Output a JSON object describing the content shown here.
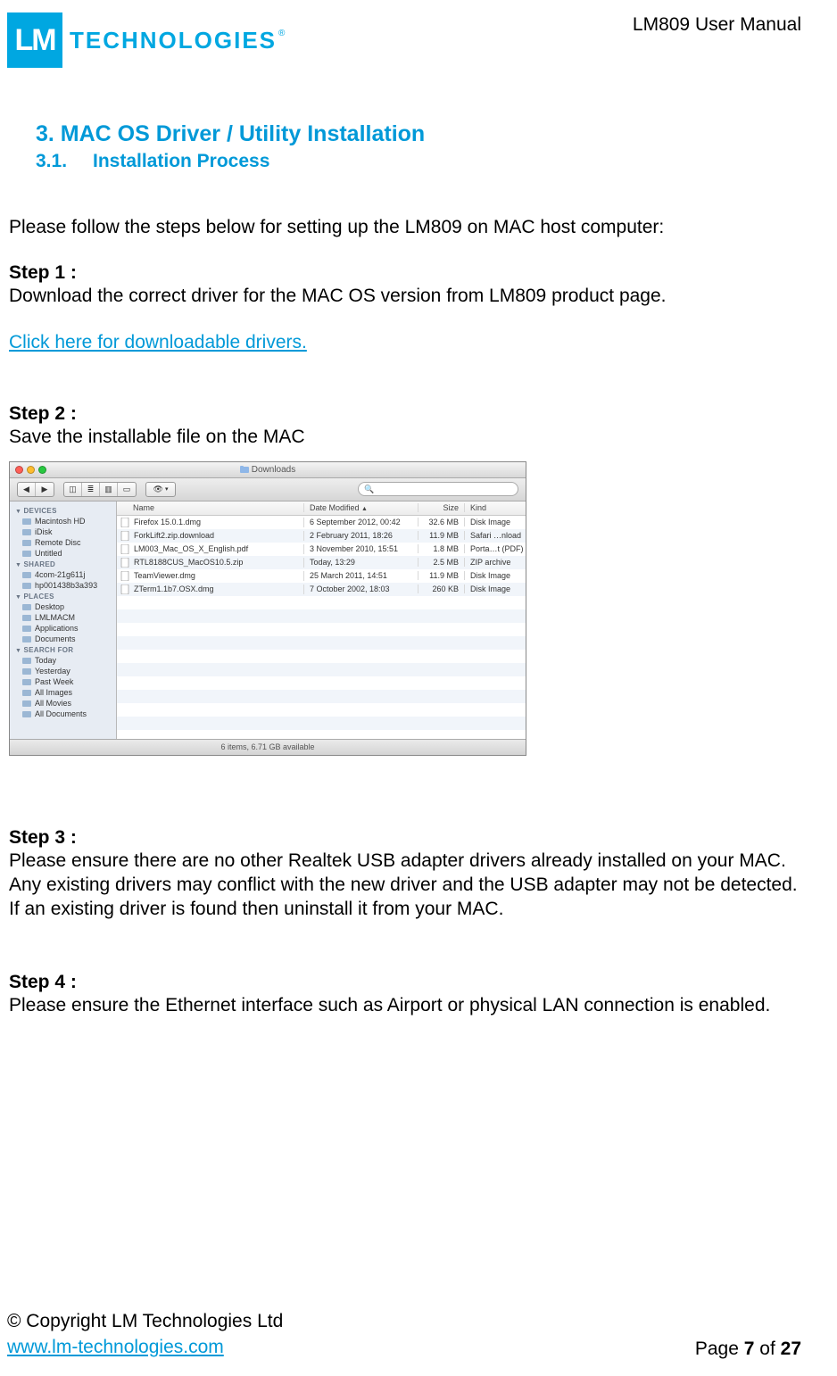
{
  "brand": {
    "logo_mark": "LM",
    "logo_word": "TECHNOLOGIES",
    "accent_color": "#00a7e1",
    "link_color": "#0099d8"
  },
  "header": {
    "doc_title": "LM809 User Manual"
  },
  "section": {
    "h1": "3.  MAC OS Driver / Utility Installation",
    "h2_num": "3.1.",
    "h2_text": "Installation Process"
  },
  "intro": "Please follow the steps below for setting up the LM809 on MAC host computer:",
  "steps": {
    "s1_label": "Step 1 :",
    "s1_body": "Download the correct driver for the MAC OS version from LM809 product page.",
    "s1_link": "Click here for downloadable drivers.",
    "s2_label": "Step 2 :",
    "s2_body": "Save the installable file on the MAC",
    "s3_label": "Step 3 :",
    "s3_body": "Please ensure there are no other Realtek USB adapter drivers already installed on your MAC. Any existing drivers may conflict with the new driver and the USB adapter may not be detected. If an existing driver is found then uninstall it from your MAC.",
    "s4_label": "Step 4 :",
    "s4_body": "Please ensure the Ethernet interface such as Airport or physical LAN connection is enabled."
  },
  "finder": {
    "window_title": "Downloads",
    "search_placeholder": "",
    "search_glyph": "🔍",
    "columns": {
      "name": "Name",
      "date": "Date Modified",
      "size": "Size",
      "kind": "Kind"
    },
    "sidebar": {
      "devices_label": "DEVICES",
      "devices": [
        "Macintosh HD",
        "iDisk",
        "Remote Disc",
        "Untitled"
      ],
      "shared_label": "SHARED",
      "shared": [
        "4com-21g611j",
        "hp001438b3a393"
      ],
      "places_label": "PLACES",
      "places": [
        "Desktop",
        "LMLMACM",
        "Applications",
        "Documents"
      ],
      "search_label": "SEARCH FOR",
      "search": [
        "Today",
        "Yesterday",
        "Past Week",
        "All Images",
        "All Movies",
        "All Documents"
      ]
    },
    "rows": [
      {
        "name": "Firefox 15.0.1.dmg",
        "date": "6 September 2012, 00:42",
        "size": "32.6 MB",
        "kind": "Disk Image"
      },
      {
        "name": "ForkLift2.zip.download",
        "date": "2 February 2011, 18:26",
        "size": "11.9 MB",
        "kind": "Safari …nload"
      },
      {
        "name": "LM003_Mac_OS_X_English.pdf",
        "date": "3 November 2010, 15:51",
        "size": "1.8 MB",
        "kind": "Porta…t (PDF)"
      },
      {
        "name": "RTL8188CUS_MacOS10.5.zip",
        "date": "Today, 13:29",
        "size": "2.5 MB",
        "kind": "ZIP archive"
      },
      {
        "name": "TeamViewer.dmg",
        "date": "25 March 2011, 14:51",
        "size": "11.9 MB",
        "kind": "Disk Image"
      },
      {
        "name": "ZTerm1.1b7.OSX.dmg",
        "date": "7 October 2002, 18:03",
        "size": "260 KB",
        "kind": "Disk Image"
      }
    ],
    "status": "6 items, 6.71 GB available"
  },
  "footer": {
    "copyright": "© Copyright LM Technologies Ltd",
    "url": "www.lm-technologies.com",
    "page_word": "Page ",
    "page_current": "7",
    "page_of": " of ",
    "page_total": "27"
  }
}
